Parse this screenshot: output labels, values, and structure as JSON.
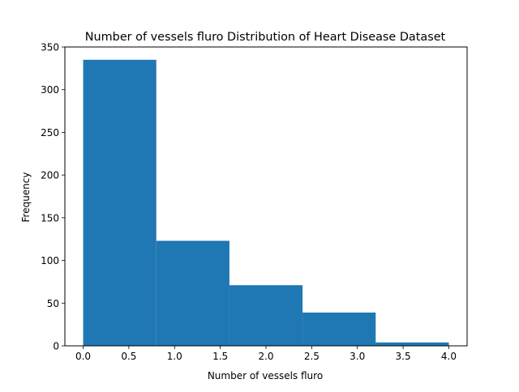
{
  "chart_data": {
    "type": "bar",
    "title": "Number of vessels fluro Distribution of Heart Disease Dataset",
    "xlabel": "Number of vessels fluro",
    "ylabel": "Frequency",
    "bins": [
      {
        "start": 0.0,
        "end": 0.8,
        "count": 335
      },
      {
        "start": 0.8,
        "end": 1.6,
        "count": 123
      },
      {
        "start": 1.6,
        "end": 2.4,
        "count": 71
      },
      {
        "start": 2.4,
        "end": 3.2,
        "count": 39
      },
      {
        "start": 3.2,
        "end": 4.0,
        "count": 4
      }
    ],
    "xlim": [
      -0.2,
      4.2
    ],
    "ylim": [
      0,
      350
    ],
    "xticks": [
      0.0,
      0.5,
      1.0,
      1.5,
      2.0,
      2.5,
      3.0,
      3.5,
      4.0
    ],
    "xtick_labels": [
      "0.0",
      "0.5",
      "1.0",
      "1.5",
      "2.0",
      "2.5",
      "3.0",
      "3.5",
      "4.0"
    ],
    "yticks": [
      0,
      50,
      100,
      150,
      200,
      250,
      300,
      350
    ],
    "ytick_labels": [
      "0",
      "50",
      "100",
      "150",
      "200",
      "250",
      "300",
      "350"
    ],
    "bar_color": "#1f77b4",
    "grid": false,
    "legend": "none"
  }
}
